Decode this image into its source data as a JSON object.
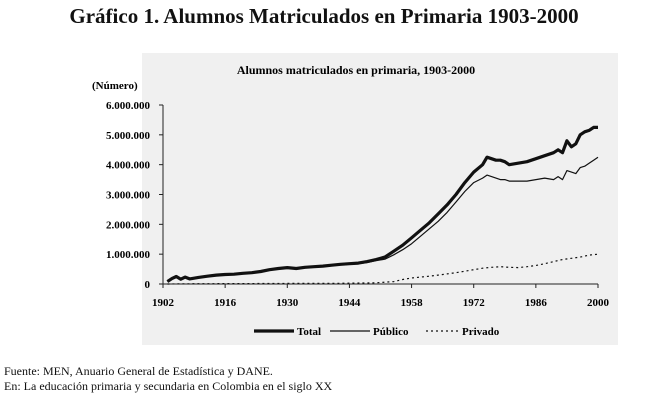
{
  "figure_title": "Gráfico 1. Alumnos Matriculados en Primaria 1903-2000",
  "source_lines": [
    "Fuente: MEN, Anuario General de Estadística y DANE.",
    "En: La educación primaria y secundaria en Colombia en el siglo XX"
  ],
  "chart_data": {
    "type": "line",
    "title": "Alumnos matriculados en primaria, 1903-2000",
    "ylabel": "(Número)",
    "xlabel": "",
    "xlim": [
      1902,
      2000
    ],
    "ylim": [
      0,
      6000000
    ],
    "x_ticks": [
      1902,
      1916,
      1930,
      1944,
      1958,
      1972,
      1986,
      2000
    ],
    "y_ticks": [
      0,
      1000000,
      2000000,
      3000000,
      4000000,
      5000000,
      6000000
    ],
    "y_tick_labels": [
      "0",
      "1.000.000",
      "2.000.000",
      "3.000.000",
      "4.000.000",
      "5.000.000",
      "6.000.000"
    ],
    "grid": false,
    "legend_position": "bottom",
    "series": [
      {
        "name": "Total",
        "style": "thick",
        "x": [
          1903,
          1904,
          1905,
          1906,
          1907,
          1908,
          1910,
          1912,
          1914,
          1916,
          1918,
          1920,
          1922,
          1924,
          1926,
          1928,
          1930,
          1932,
          1934,
          1936,
          1938,
          1940,
          1942,
          1944,
          1946,
          1948,
          1950,
          1952,
          1954,
          1956,
          1958,
          1960,
          1962,
          1964,
          1966,
          1968,
          1970,
          1972,
          1974,
          1975,
          1976,
          1977,
          1978,
          1979,
          1980,
          1982,
          1984,
          1986,
          1988,
          1990,
          1991,
          1992,
          1993,
          1994,
          1995,
          1996,
          1997,
          1998,
          1999,
          2000
        ],
        "values": [
          80000,
          180000,
          250000,
          160000,
          230000,
          170000,
          220000,
          260000,
          300000,
          320000,
          330000,
          360000,
          380000,
          420000,
          480000,
          520000,
          550000,
          520000,
          560000,
          580000,
          600000,
          630000,
          660000,
          680000,
          700000,
          750000,
          820000,
          900000,
          1100000,
          1300000,
          1550000,
          1800000,
          2050000,
          2350000,
          2650000,
          3000000,
          3400000,
          3750000,
          4000000,
          4250000,
          4200000,
          4150000,
          4150000,
          4100000,
          4000000,
          4050000,
          4100000,
          4200000,
          4300000,
          4400000,
          4500000,
          4400000,
          4800000,
          4600000,
          4700000,
          5000000,
          5100000,
          5150000,
          5250000,
          5250000
        ]
      },
      {
        "name": "Público",
        "style": "thin",
        "x": [
          1903,
          1904,
          1905,
          1906,
          1907,
          1908,
          1910,
          1912,
          1914,
          1916,
          1918,
          1920,
          1922,
          1924,
          1926,
          1928,
          1930,
          1932,
          1934,
          1936,
          1938,
          1940,
          1942,
          1944,
          1946,
          1948,
          1950,
          1952,
          1954,
          1956,
          1958,
          1960,
          1962,
          1964,
          1966,
          1968,
          1970,
          1972,
          1974,
          1975,
          1976,
          1977,
          1978,
          1979,
          1980,
          1982,
          1984,
          1986,
          1988,
          1990,
          1991,
          1992,
          1993,
          1994,
          1995,
          1996,
          1997,
          1998,
          1999,
          2000
        ],
        "values": [
          80000,
          170000,
          240000,
          150000,
          220000,
          160000,
          210000,
          250000,
          290000,
          310000,
          320000,
          350000,
          370000,
          410000,
          460000,
          500000,
          530000,
          500000,
          540000,
          560000,
          580000,
          610000,
          640000,
          660000,
          680000,
          720000,
          780000,
          830000,
          980000,
          1150000,
          1350000,
          1600000,
          1850000,
          2100000,
          2400000,
          2750000,
          3100000,
          3400000,
          3550000,
          3650000,
          3600000,
          3550000,
          3500000,
          3500000,
          3450000,
          3450000,
          3450000,
          3500000,
          3550000,
          3500000,
          3600000,
          3500000,
          3800000,
          3750000,
          3700000,
          3900000,
          3950000,
          4050000,
          4150000,
          4250000
        ]
      },
      {
        "name": "Privado",
        "style": "dashed",
        "x": [
          1903,
          1910,
          1920,
          1930,
          1940,
          1950,
          1954,
          1956,
          1958,
          1960,
          1962,
          1964,
          1966,
          1968,
          1970,
          1972,
          1974,
          1976,
          1978,
          1980,
          1982,
          1984,
          1986,
          1988,
          1990,
          1992,
          1994,
          1996,
          1998,
          2000
        ],
        "values": [
          0,
          10000,
          15000,
          20000,
          20000,
          40000,
          80000,
          150000,
          200000,
          230000,
          260000,
          300000,
          340000,
          380000,
          430000,
          480000,
          530000,
          560000,
          580000,
          560000,
          550000,
          580000,
          620000,
          680000,
          750000,
          820000,
          860000,
          900000,
          970000,
          1000000
        ]
      }
    ]
  }
}
